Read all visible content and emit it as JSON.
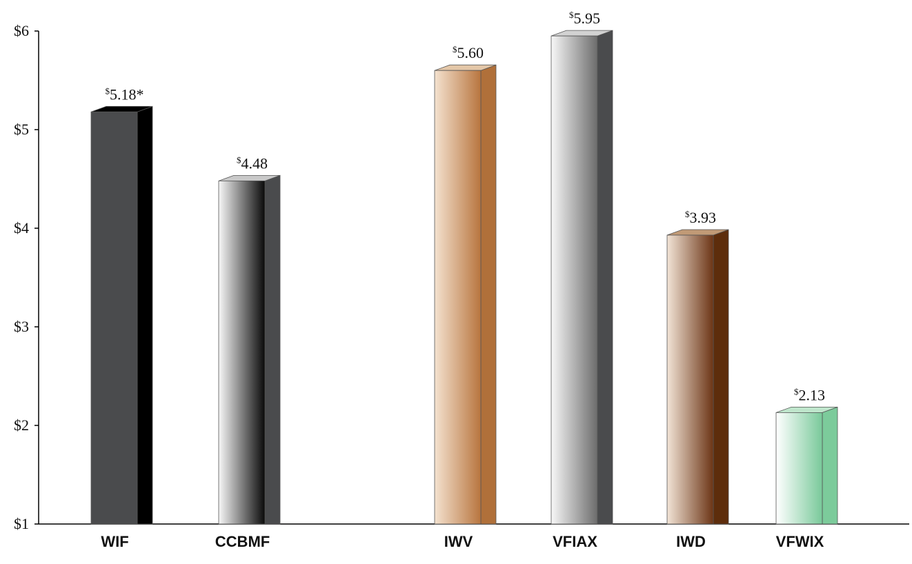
{
  "chart_data": {
    "type": "bar",
    "categories": [
      "WIF",
      "CCBMF",
      "IWV",
      "VFIAX",
      "IWD",
      "VFWIX"
    ],
    "values": [
      5.18,
      4.48,
      5.6,
      5.95,
      3.93,
      2.13
    ],
    "value_labels": [
      "5.18*",
      "4.48",
      "5.60",
      "5.95",
      "3.93",
      "2.13"
    ],
    "label_prefix": "$",
    "ylim": [
      1,
      6
    ],
    "yticks": [
      1,
      2,
      3,
      4,
      5,
      6
    ],
    "ytick_labels": [
      "$1",
      "$2",
      "$3",
      "$4",
      "$5",
      "$6"
    ],
    "grid": false,
    "bar_style": "3d",
    "colors": [
      {
        "front": [
          "#4a4b4d",
          "#4a4b4d"
        ],
        "side": "#000000",
        "top": "#000000"
      },
      {
        "front": [
          "#f7f7f7",
          "#0a0a0a"
        ],
        "side": "#4a4b4d",
        "top": "#c9c9c9"
      },
      {
        "front": [
          "#f4e2cf",
          "#b8753f"
        ],
        "side": "#b0703a",
        "top": "#e4c7a8"
      },
      {
        "front": [
          "#f7f7f7",
          "#6c6c6c"
        ],
        "side": "#4a4b4d",
        "top": "#d2d2d2"
      },
      {
        "front": [
          "#f2e4d6",
          "#6c3516"
        ],
        "side": "#5d2d0c",
        "top": "#c19a76"
      },
      {
        "front": [
          "#ffffff",
          "#79c99a"
        ],
        "side": "#7ccb9b",
        "top": "#bfe6cc"
      }
    ]
  }
}
